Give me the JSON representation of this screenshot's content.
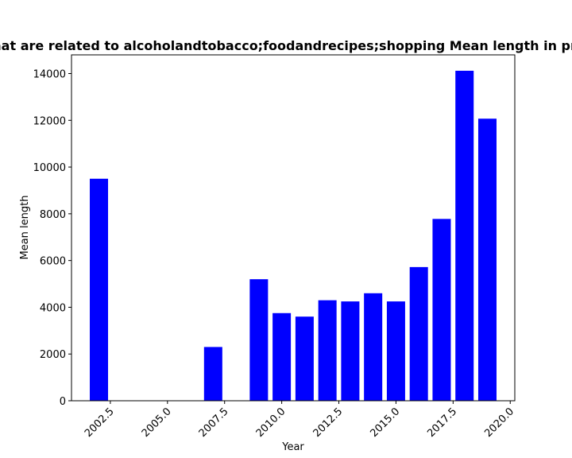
{
  "chart_data": {
    "type": "bar",
    "title": "ots that are related to alcoholandtobacco;foodandrecipes;shopping Mean length in private",
    "xlabel": "Year",
    "ylabel": "Mean length",
    "x": [
      2002,
      2007,
      2009,
      2010,
      2011,
      2012,
      2013,
      2014,
      2015,
      2016,
      2017,
      2018,
      2019
    ],
    "values": [
      9500,
      2300,
      5200,
      3750,
      3600,
      4300,
      4250,
      4600,
      4250,
      5720,
      7780,
      14120,
      12070
    ],
    "xlim": [
      2000.8,
      2020.2
    ],
    "ylim": [
      0,
      14800
    ],
    "xticks": [
      2002.5,
      2005.0,
      2007.5,
      2010.0,
      2012.5,
      2015.0,
      2017.5,
      2020.0
    ],
    "xtick_labels": [
      "2002.5",
      "2005.0",
      "2007.5",
      "2010.0",
      "2012.5",
      "2015.0",
      "2017.5",
      "2020.0"
    ],
    "yticks": [
      0,
      2000,
      4000,
      6000,
      8000,
      10000,
      12000,
      14000
    ],
    "ytick_labels": [
      "0",
      "2000",
      "4000",
      "6000",
      "8000",
      "10000",
      "12000",
      "14000"
    ],
    "bar_width": 0.8,
    "bar_color": "#0000ff",
    "grid": false,
    "legend": "none"
  }
}
